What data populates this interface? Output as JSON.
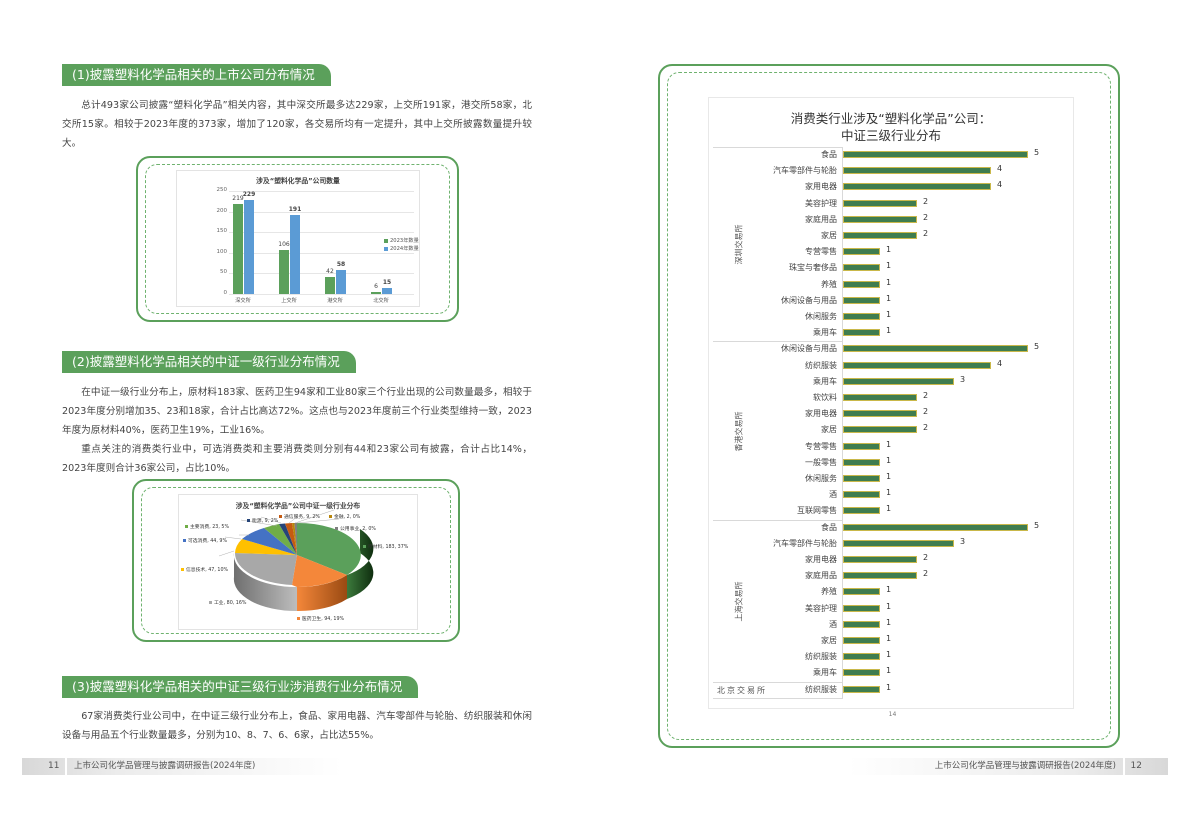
{
  "left_page": {
    "section1": {
      "heading": "(1)披露塑料化学品相关的上市公司分布情况",
      "paragraph": "总计493家公司披露“塑料化学品”相关内容，其中深交所最多达229家，上交所191家，港交所58家，北交所15家。相较于2023年度的373家，增加了120家，各交易所均有一定提升，其中上交所披露数量提升较大。"
    },
    "section2": {
      "heading": "(2)披露塑料化学品相关的中证一级行业分布情况",
      "paragraph1": "在中证一级行业分布上，原材料183家、医药卫生94家和工业80家三个行业出现的公司数量最多，相较于2023年度分别增加35、23和18家，合计占比高达72%。这点也与2023年度前三个行业类型维持一致，2023年度为原材料40%，医药卫生19%，工业16%。",
      "paragraph2": "重点关注的消费类行业中，可选消费类和主要消费类则分别有44和23家公司有披露，合计占比14%，2023年度则合计36家公司，占比10%。"
    },
    "section3": {
      "heading": "(3)披露塑料化学品相关的中证三级行业涉消费行业分布情况",
      "paragraph": "67家消费类行业公司中，在中证三级行业分布上，食品、家用电器、汽车零部件与轮胎、纺织服装和休闲设备与用品五个行业数量最多，分别为10、8、7、6、6家，占比达55%。"
    },
    "footer": {
      "page_number": "11",
      "title": "上市公司化学品管理与披露调研报告(2024年度)"
    }
  },
  "right_page": {
    "chart_page_number": "14",
    "footer": {
      "page_number": "12",
      "title": "上市公司化学品管理与披露调研报告(2024年度)"
    }
  },
  "colors": {
    "accent_green": "#5ba05b",
    "series_2023": "#5ba05b",
    "series_2024": "#5b9bd5",
    "hbar_fill": "#3f7d4f",
    "hbar_border": "#c9b84a"
  },
  "chart_data": [
    {
      "type": "bar",
      "title": "涉及“塑料化学品”公司数量",
      "categories": [
        "深交所",
        "上交所",
        "港交所",
        "北交所"
      ],
      "series": [
        {
          "name": "2023年数量",
          "values": [
            219,
            106,
            42,
            6
          ],
          "color": "#5ba05b"
        },
        {
          "name": "2024年数量",
          "values": [
            229,
            191,
            58,
            15
          ],
          "color": "#5b9bd5"
        }
      ],
      "yticks": [
        "0",
        "50",
        "100",
        "150",
        "200",
        "250"
      ],
      "ylim": [
        0,
        250
      ],
      "grid": true,
      "legend_position": "right"
    },
    {
      "type": "pie",
      "title": "涉及“塑料化学品”公司中证一级行业分布",
      "slices": [
        {
          "label": "原材料",
          "value": 183,
          "pct": "37%",
          "color": "#5ba05b"
        },
        {
          "label": "医药卫生",
          "value": 94,
          "pct": "19%",
          "color": "#f4873a"
        },
        {
          "label": "工业",
          "value": 80,
          "pct": "16%",
          "color": "#a8a8a8"
        },
        {
          "label": "信息技术",
          "value": 47,
          "pct": "10%",
          "color": "#ffc000"
        },
        {
          "label": "可选消费",
          "value": 44,
          "pct": "9%",
          "color": "#4472c4"
        },
        {
          "label": "主要消费",
          "value": 23,
          "pct": "5%",
          "color": "#70ad47"
        },
        {
          "label": "能源",
          "value": 9,
          "pct": "2%",
          "color": "#264478"
        },
        {
          "label": "通信服务",
          "value": 9,
          "pct": "2%",
          "color": "#c55a11"
        },
        {
          "label": "金融",
          "value": 2,
          "pct": "0%",
          "color": "#b8860b"
        },
        {
          "label": "公用事业",
          "value": 2,
          "pct": "0%",
          "color": "#7f7f7f"
        }
      ],
      "labels_text": [
        "原材料, 183, 37%",
        "医药卫生, 94, 19%",
        "工业, 80, 16%",
        "信息技术, 47, 10%",
        "可选消费, 44, 9%",
        "主要消费, 23, 5%",
        "能源, 9, 2%",
        "通信服务, 9, 2%",
        "金融, 2, 0%",
        "公用事业, 2, 0%"
      ]
    },
    {
      "type": "bar",
      "orientation": "horizontal",
      "title_line1": "消费类行业涉及“塑料化学品”公司：",
      "title_line2": "中证三级行业分布",
      "groups": [
        {
          "name": "深圳交易所",
          "categories": [
            "食品",
            "汽车零部件与轮胎",
            "家用电器",
            "美容护理",
            "家庭用品",
            "家居",
            "专营零售",
            "珠宝与奢侈品",
            "养殖",
            "休闲设备与用品",
            "休闲服务",
            "乘用车"
          ],
          "values": [
            5,
            4,
            4,
            2,
            2,
            2,
            1,
            1,
            1,
            1,
            1,
            1
          ]
        },
        {
          "name": "香港交易所",
          "categories": [
            "休闲设备与用品",
            "纺织服装",
            "乘用车",
            "软饮料",
            "家用电器",
            "家居",
            "专营零售",
            "一般零售",
            "休闲服务",
            "酒",
            "互联网零售"
          ],
          "values": [
            5,
            4,
            3,
            2,
            2,
            2,
            1,
            1,
            1,
            1,
            1
          ]
        },
        {
          "name": "上海交易所",
          "categories": [
            "食品",
            "汽车零部件与轮胎",
            "家用电器",
            "家庭用品",
            "养殖",
            "美容护理",
            "酒",
            "家居",
            "纺织服装",
            "乘用车"
          ],
          "values": [
            5,
            3,
            2,
            2,
            1,
            1,
            1,
            1,
            1,
            1
          ]
        },
        {
          "name": "北京交易所",
          "categories": [
            "纺织服装"
          ],
          "values": [
            1
          ]
        }
      ],
      "xlim": [
        0,
        5
      ],
      "grid": false
    }
  ]
}
